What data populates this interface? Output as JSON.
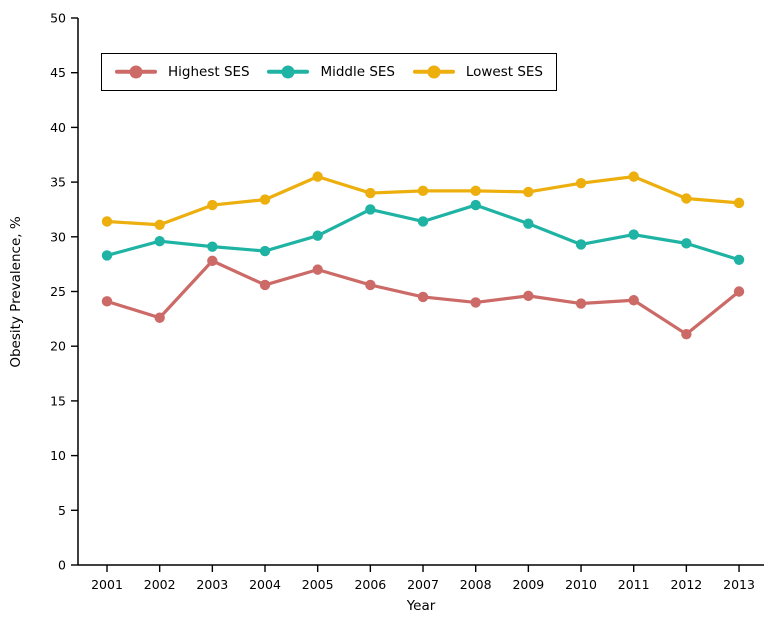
{
  "chart_data": {
    "type": "line",
    "title": "",
    "xlabel": "Year",
    "ylabel": "Obesity Prevalence, %",
    "x": [
      2001,
      2002,
      2003,
      2004,
      2005,
      2006,
      2007,
      2008,
      2009,
      2010,
      2011,
      2012,
      2013
    ],
    "ylim": [
      0,
      50
    ],
    "yticks": [
      0,
      5,
      10,
      15,
      20,
      25,
      30,
      35,
      40,
      45,
      50
    ],
    "grid": false,
    "legend_position": "inside-top-left",
    "axis_color": "#000000",
    "background_color": "#ffffff",
    "series": [
      {
        "name": "Highest SES",
        "color": "#CC6A67",
        "values": [
          24.1,
          22.6,
          27.8,
          25.6,
          27.0,
          25.6,
          24.5,
          24.0,
          24.6,
          23.9,
          24.2,
          21.1,
          25.0
        ]
      },
      {
        "name": "Middle SES",
        "color": "#1FB3A4",
        "values": [
          28.3,
          29.6,
          29.1,
          28.7,
          30.1,
          32.5,
          31.4,
          32.9,
          31.2,
          29.3,
          30.2,
          29.4,
          27.9
        ]
      },
      {
        "name": "Lowest SES",
        "color": "#EDAF0E",
        "values": [
          31.4,
          31.1,
          32.9,
          33.4,
          35.5,
          34.0,
          34.2,
          34.2,
          34.1,
          34.9,
          35.5,
          33.5,
          33.1
        ]
      }
    ]
  }
}
